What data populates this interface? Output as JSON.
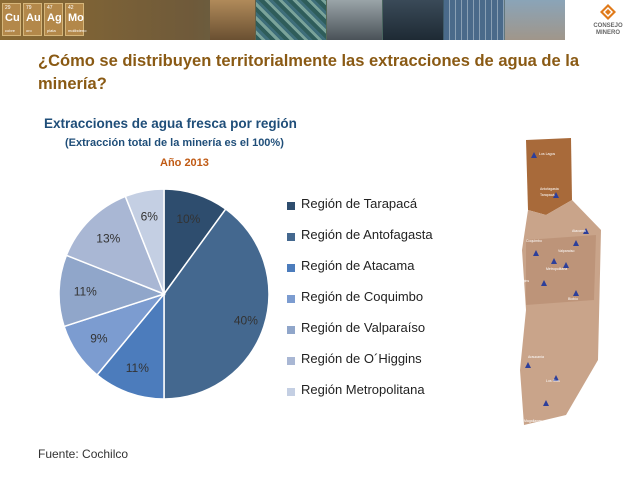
{
  "banner": {
    "tiles": [
      {
        "num": "29",
        "sym": "Cu",
        "name": "cobre"
      },
      {
        "num": "79",
        "sym": "Au",
        "name": "oro"
      },
      {
        "num": "47",
        "sym": "Ag",
        "name": "plata"
      },
      {
        "num": "42",
        "sym": "Mo",
        "name": "molibdeno"
      }
    ],
    "logo_text_1": "CONSEJO",
    "logo_text_2": "MINERO"
  },
  "page_title": "¿Cómo se distribuyen territorialmente las extracciones de agua de la minería?",
  "chart_data": {
    "type": "pie",
    "title": "Extracciones de agua fresca por región",
    "subtitle": "(Extracción total de la minería es el 100%)",
    "year_label": "Año 2013",
    "categories": [
      "Región de Tarapacá",
      "Región de Antofagasta",
      "Región de Atacama",
      "Región de Coquimbo",
      "Región de Valparaíso",
      "Región de O´Higgins",
      "Región Metropolitana"
    ],
    "values": [
      10,
      40,
      11,
      9,
      11,
      13,
      6
    ],
    "labels": [
      "10%",
      "40%",
      "11%",
      "9%",
      "11%",
      "13%",
      "6%"
    ],
    "colors": [
      "#2e4d6e",
      "#44688f",
      "#4c7cbc",
      "#7c9cd0",
      "#90a6ca",
      "#a9b7d4",
      "#c4cfe3"
    ],
    "legend_position": "right"
  },
  "map": {
    "labels": [
      "Los Lagos",
      "Antofagasta",
      "Tarapacá",
      "Atacama",
      "Coquimbo",
      "Valparaíso",
      "Metropolitana",
      "O'Higgins",
      "Biobío",
      "Araucanía",
      "Los Ríos",
      "Magallanes"
    ]
  },
  "footer": "Fuente: Cochilco"
}
